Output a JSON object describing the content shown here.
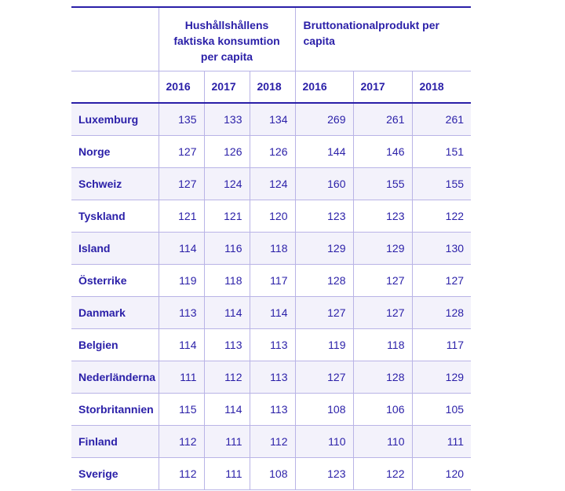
{
  "table": {
    "groups": [
      "Hushållshållens faktiska konsumtion per capita",
      "Bruttonationalprodukt per capita"
    ],
    "years": [
      "2016",
      "2017",
      "2018",
      "2016",
      "2017",
      "2018"
    ],
    "rows": [
      {
        "country": "Luxemburg",
        "values": [
          "135",
          "133",
          "134",
          "269",
          "261",
          "261"
        ]
      },
      {
        "country": "Norge",
        "values": [
          "127",
          "126",
          "126",
          "144",
          "146",
          "151"
        ]
      },
      {
        "country": "Schweiz",
        "values": [
          "127",
          "124",
          "124",
          "160",
          "155",
          "155"
        ]
      },
      {
        "country": "Tyskland",
        "values": [
          "121",
          "121",
          "120",
          "123",
          "123",
          "122"
        ]
      },
      {
        "country": "Island",
        "values": [
          "114",
          "116",
          "118",
          "129",
          "129",
          "130"
        ]
      },
      {
        "country": "Österrike",
        "values": [
          "119",
          "118",
          "117",
          "128",
          "127",
          "127"
        ]
      },
      {
        "country": "Danmark",
        "values": [
          "113",
          "114",
          "114",
          "127",
          "127",
          "128"
        ]
      },
      {
        "country": "Belgien",
        "values": [
          "114",
          "113",
          "113",
          "119",
          "118",
          "117"
        ]
      },
      {
        "country": "Nederländerna",
        "values": [
          "111",
          "112",
          "113",
          "127",
          "128",
          "129"
        ]
      },
      {
        "country": "Storbritannien",
        "values": [
          "115",
          "114",
          "113",
          "108",
          "106",
          "105"
        ]
      },
      {
        "country": "Finland",
        "values": [
          "112",
          "111",
          "112",
          "110",
          "110",
          "111"
        ]
      },
      {
        "country": "Sverige",
        "values": [
          "112",
          "111",
          "108",
          "123",
          "122",
          "120"
        ]
      }
    ]
  }
}
